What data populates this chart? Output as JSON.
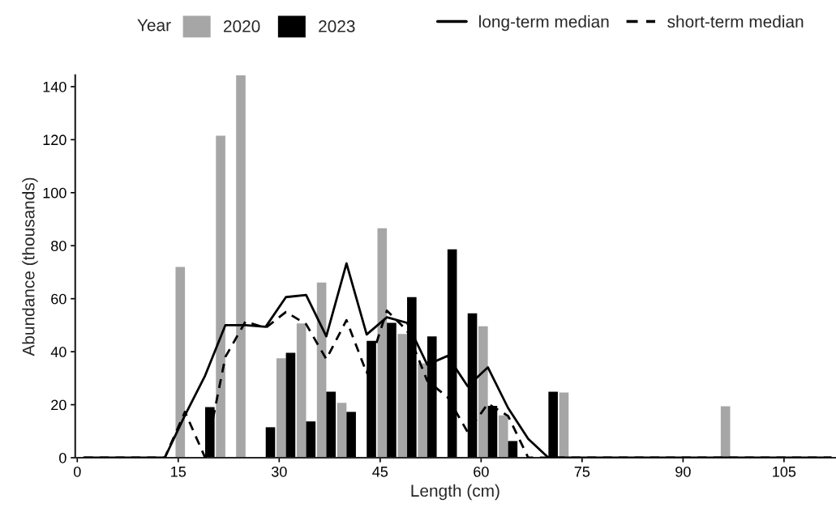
{
  "chart_data": {
    "type": "bar",
    "xlabel": "Length (cm)",
    "ylabel": "Abundance (thousands)",
    "legend_title": "Year",
    "legend": "top",
    "xlim": [
      -0.3,
      112.6
    ],
    "xticks": [
      0,
      15,
      30,
      45,
      60,
      75,
      90,
      105
    ],
    "ylim": [
      0,
      144.3
    ],
    "yticks": [
      0,
      20,
      40,
      60,
      80,
      100,
      120,
      140
    ],
    "grid": false,
    "series": [
      {
        "name": "2020",
        "color": "#a6a6a6",
        "x": [
          16,
          22,
          25,
          31,
          34,
          37,
          40,
          46,
          49,
          52,
          61,
          64,
          73,
          97
        ],
        "values": [
          72,
          121.5,
          144.3,
          37.5,
          50.7,
          66.1,
          20.7,
          86.6,
          46.7,
          35.6,
          49.6,
          16,
          24.6,
          19.4
        ]
      },
      {
        "name": "2023",
        "color": "#000000",
        "x": [
          19,
          28,
          31,
          34,
          37,
          40,
          43,
          46,
          49,
          52,
          55,
          58,
          61,
          64,
          70
        ],
        "values": [
          19.1,
          11.5,
          39.6,
          13.7,
          24.9,
          17.3,
          44.1,
          50.9,
          60.6,
          45.8,
          78.6,
          54.5,
          19.6,
          6.3,
          24.9
        ]
      },
      {
        "name": "long-term median",
        "type": "line",
        "line_style": "solid",
        "color": "#000000",
        "x": [
          1,
          4,
          7,
          10,
          13,
          16,
          19,
          22,
          25,
          28,
          31,
          34,
          37,
          40,
          43,
          46,
          49,
          52,
          55,
          58,
          61,
          64,
          67,
          70,
          73,
          76,
          79,
          82,
          85,
          88,
          91,
          94,
          97,
          100,
          103,
          106,
          109,
          112
        ],
        "values": [
          0,
          0,
          0,
          0,
          0,
          16,
          31,
          50,
          50,
          49.4,
          60.6,
          61.4,
          45.8,
          73.3,
          46.5,
          53,
          50.9,
          35.1,
          38.4,
          27,
          34.1,
          18.8,
          7.1,
          0,
          0,
          0,
          0,
          0,
          0,
          0,
          0,
          0,
          0,
          0,
          0,
          0,
          0,
          0
        ]
      },
      {
        "name": "short-term median",
        "type": "line",
        "line_style": "dashed",
        "color": "#000000",
        "x": [
          1,
          4,
          7,
          10,
          13,
          16,
          19,
          22,
          25,
          28,
          31,
          34,
          37,
          40,
          43,
          46,
          49,
          52,
          55,
          58,
          61,
          64,
          67,
          70,
          73,
          76,
          79,
          82,
          85,
          88,
          91,
          94,
          97,
          100,
          103,
          106,
          109,
          112
        ],
        "values": [
          0,
          0,
          0,
          0,
          0,
          17.3,
          0,
          38,
          51.4,
          49,
          55,
          50.4,
          37.2,
          51.9,
          32,
          55.5,
          48,
          29,
          22.9,
          9.7,
          20.4,
          15.8,
          0,
          0,
          0,
          0,
          0,
          0,
          0,
          0,
          0,
          0,
          0,
          0,
          0,
          0,
          0,
          0
        ]
      }
    ]
  }
}
